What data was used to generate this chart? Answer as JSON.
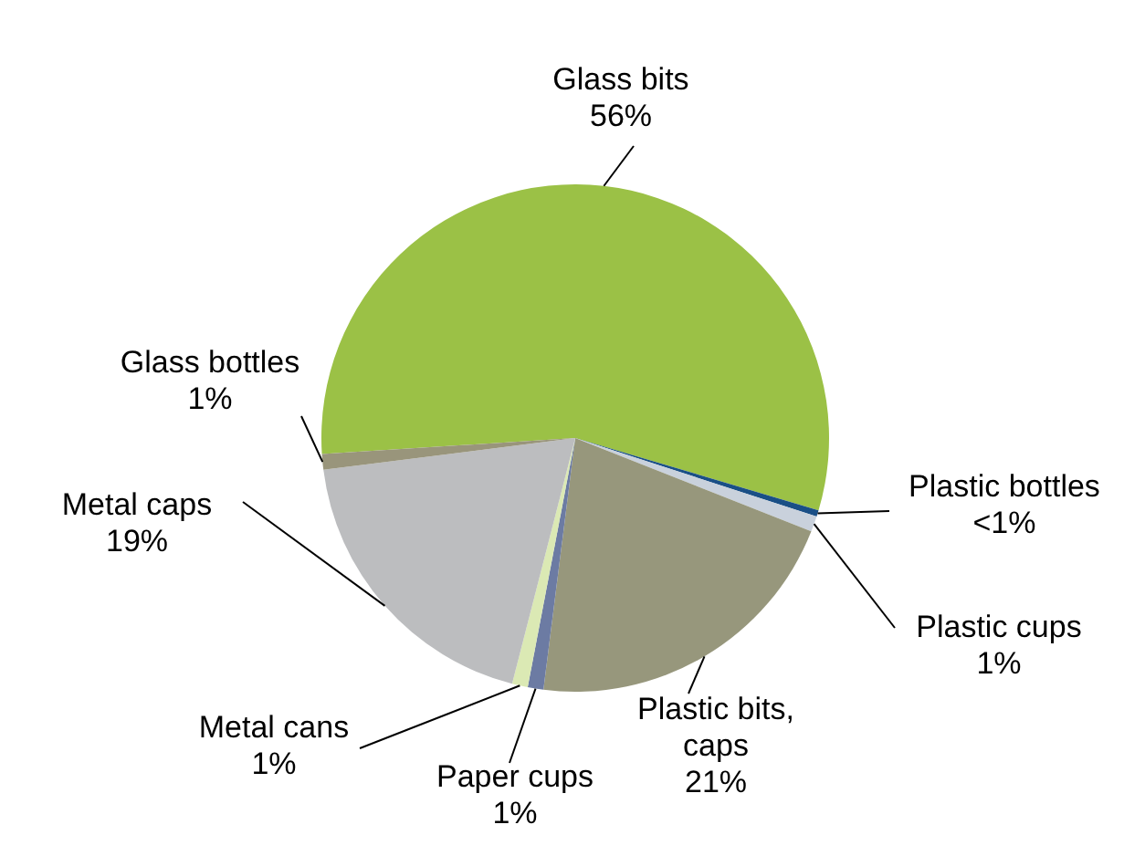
{
  "chart_data": {
    "type": "pie",
    "categories": [
      "Glass bits",
      "Plastic bottles",
      "Plastic cups",
      "Plastic bits, caps",
      "Paper cups",
      "Metal cans",
      "Metal caps",
      "Glass bottles"
    ],
    "values": [
      55.6,
      0.4,
      1,
      21,
      1,
      1,
      19,
      1
    ],
    "value_labels": [
      "56%",
      "<1%",
      "1%",
      "21%",
      "1%",
      "1%",
      "19%",
      "1%"
    ],
    "colors": [
      "#9bc146",
      "#1a4f86",
      "#c9d1dc",
      "#97977c",
      "#6c7ba3",
      "#dbe9b4",
      "#bcbdbf",
      "#99957b"
    ]
  }
}
